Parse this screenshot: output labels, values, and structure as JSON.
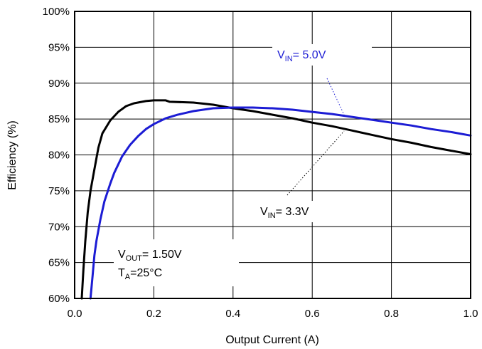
{
  "chart_data": {
    "type": "line",
    "title": "",
    "xlabel": "Output Current (A)",
    "ylabel": "Efficiency (%)",
    "xlim": [
      0,
      1.0
    ],
    "ylim": [
      60,
      100
    ],
    "grid": true,
    "x_ticks": [
      0,
      0.2,
      0.4,
      0.6,
      0.8,
      1.0
    ],
    "x_tick_labels": [
      "0.0",
      "0.2",
      "0.4",
      "0.6",
      "0.8",
      "1.0"
    ],
    "y_ticks": [
      60,
      65,
      70,
      75,
      80,
      85,
      90,
      95,
      100
    ],
    "y_tick_labels": [
      "60%",
      "65%",
      "70%",
      "75%",
      "80%",
      "85%",
      "90%",
      "95%",
      "100%"
    ],
    "series": [
      {
        "label_main": "V",
        "label_sub": "IN",
        "label_rest": "= 3.3V",
        "color": "#000000",
        "points": [
          [
            0.018,
            60
          ],
          [
            0.022,
            64
          ],
          [
            0.027,
            68
          ],
          [
            0.033,
            72
          ],
          [
            0.04,
            75
          ],
          [
            0.05,
            78
          ],
          [
            0.06,
            81
          ],
          [
            0.07,
            83
          ],
          [
            0.09,
            84.8
          ],
          [
            0.11,
            86
          ],
          [
            0.13,
            86.8
          ],
          [
            0.15,
            87.2
          ],
          [
            0.18,
            87.5
          ],
          [
            0.2,
            87.6
          ],
          [
            0.23,
            87.6
          ],
          [
            0.24,
            87.4
          ],
          [
            0.3,
            87.3
          ],
          [
            0.35,
            87
          ],
          [
            0.4,
            86.5
          ],
          [
            0.45,
            86.1
          ],
          [
            0.5,
            85.6
          ],
          [
            0.55,
            85.1
          ],
          [
            0.6,
            84.5
          ],
          [
            0.65,
            84
          ],
          [
            0.7,
            83.4
          ],
          [
            0.75,
            82.8
          ],
          [
            0.8,
            82.2
          ],
          [
            0.85,
            81.7
          ],
          [
            0.9,
            81.1
          ],
          [
            0.95,
            80.6
          ],
          [
            1.0,
            80.1
          ]
        ]
      },
      {
        "label_main": "V",
        "label_sub": "IN",
        "label_rest": "= 5.0V",
        "color": "#1c1cd4",
        "points": [
          [
            0.04,
            60
          ],
          [
            0.045,
            63
          ],
          [
            0.05,
            66
          ],
          [
            0.055,
            68
          ],
          [
            0.065,
            71
          ],
          [
            0.075,
            73.5
          ],
          [
            0.09,
            76
          ],
          [
            0.1,
            77.5
          ],
          [
            0.12,
            79.8
          ],
          [
            0.14,
            81.4
          ],
          [
            0.16,
            82.6
          ],
          [
            0.18,
            83.6
          ],
          [
            0.2,
            84.3
          ],
          [
            0.23,
            85.1
          ],
          [
            0.26,
            85.6
          ],
          [
            0.3,
            86.1
          ],
          [
            0.35,
            86.5
          ],
          [
            0.4,
            86.6
          ],
          [
            0.45,
            86.6
          ],
          [
            0.5,
            86.5
          ],
          [
            0.55,
            86.3
          ],
          [
            0.6,
            86
          ],
          [
            0.65,
            85.7
          ],
          [
            0.7,
            85.3
          ],
          [
            0.75,
            84.9
          ],
          [
            0.8,
            84.5
          ],
          [
            0.85,
            84.1
          ],
          [
            0.9,
            83.6
          ],
          [
            0.95,
            83.2
          ],
          [
            1.0,
            82.7
          ]
        ]
      }
    ],
    "annotation": {
      "vout_main": "V",
      "vout_sub": "OUT",
      "vout_rest": "= 1.50V",
      "ta_main": "T",
      "ta_sub": "A",
      "ta_rest": "=25°C"
    }
  }
}
